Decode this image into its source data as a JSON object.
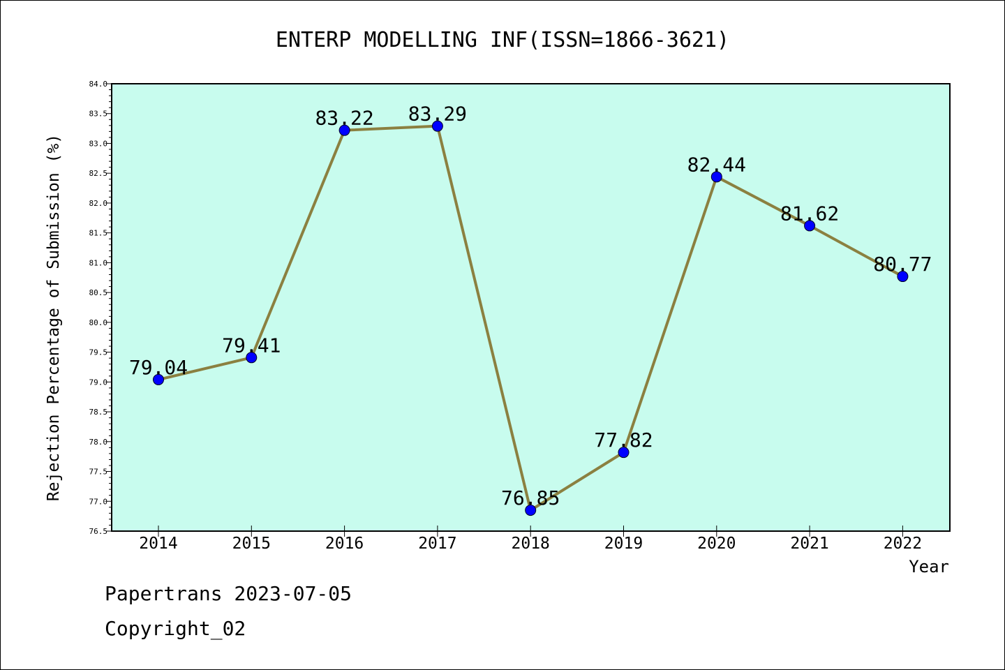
{
  "chart_data": {
    "type": "line",
    "title": "ENTERP MODELLING INF(ISSN=1866-3621)",
    "xlabel": "Year",
    "ylabel": "Rejection Percentage of Submission (%)",
    "categories": [
      "2014",
      "2015",
      "2016",
      "2017",
      "2018",
      "2019",
      "2020",
      "2021",
      "2022"
    ],
    "values": [
      79.04,
      79.41,
      83.22,
      83.29,
      76.85,
      77.82,
      82.44,
      81.62,
      80.77
    ],
    "data_labels": [
      "79.04",
      "79.41",
      "83.22",
      "83.29",
      "76.85",
      "77.82",
      "82.44",
      "81.62",
      "80.77"
    ],
    "ylim": [
      76.5,
      84.0
    ],
    "yticks": [
      "76.5",
      "77.0",
      "77.5",
      "78.0",
      "78.5",
      "79.0",
      "79.5",
      "80.0",
      "80.5",
      "81.0",
      "81.5",
      "82.0",
      "82.5",
      "83.0",
      "83.5",
      "84.0"
    ],
    "grid": false,
    "colors": {
      "plot_background": "#c8fcee",
      "line": "#8b8040",
      "marker": "#0000ff"
    }
  },
  "footer": {
    "line1": "Papertrans 2023-07-05",
    "line2": "Copyright_02"
  }
}
